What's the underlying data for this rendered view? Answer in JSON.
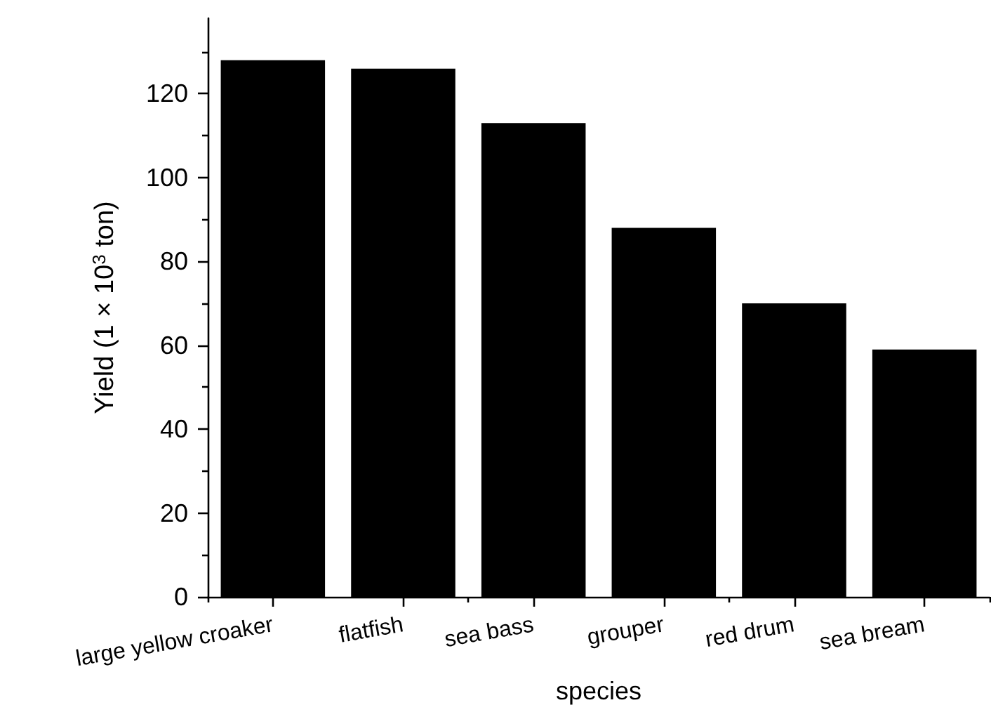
{
  "chart_data": {
    "type": "bar",
    "xlabel": "species",
    "ylabel": "Yield (1 × 10$^{3}$ ton)",
    "categories": [
      "large yellow croaker",
      "flatfish",
      "sea bass",
      "grouper",
      "red drum",
      "sea bream"
    ],
    "values": [
      128,
      126,
      113,
      88,
      70,
      59
    ],
    "color": "#000000",
    "ylim": [
      0,
      138
    ],
    "yticks": [
      0,
      20,
      40,
      60,
      80,
      100,
      120
    ]
  }
}
